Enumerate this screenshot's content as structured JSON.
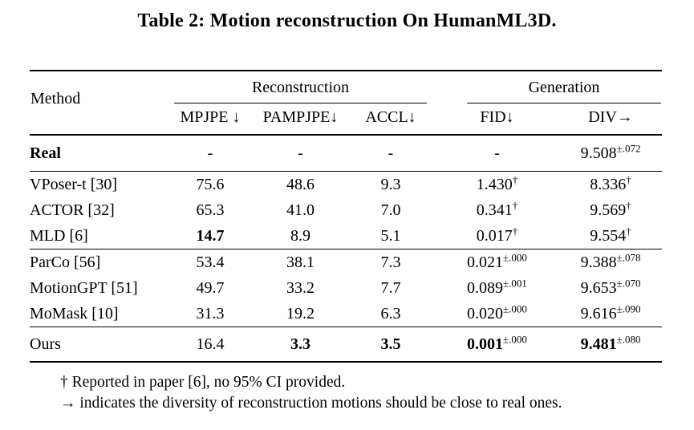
{
  "title": "Table 2: Motion reconstruction On HumanML3D.",
  "table": {
    "method_header": "Method",
    "groups": [
      {
        "label": "Reconstruction"
      },
      {
        "label": "Generation"
      }
    ],
    "columns": [
      "MPJPE ↓",
      "PAMPJPE↓",
      "ACCL↓",
      "FID↓",
      "DIV→"
    ],
    "rows": [
      {
        "method": "Real",
        "cells": [
          {
            "v": "-"
          },
          {
            "v": "-"
          },
          {
            "v": "-"
          },
          {
            "v": "-"
          },
          {
            "v": "9.508",
            "sup": "±.072"
          }
        ]
      },
      {
        "method": "VPoser-t [30]",
        "cells": [
          {
            "v": "75.6"
          },
          {
            "v": "48.6"
          },
          {
            "v": "9.3"
          },
          {
            "v": "1.430",
            "sup": "†"
          },
          {
            "v": "8.336",
            "sup": "†"
          }
        ]
      },
      {
        "method": "ACTOR [32]",
        "cells": [
          {
            "v": "65.3"
          },
          {
            "v": "41.0"
          },
          {
            "v": "7.0"
          },
          {
            "v": "0.341",
            "sup": "†"
          },
          {
            "v": "9.569",
            "sup": "†"
          }
        ]
      },
      {
        "method": "MLD [6]",
        "cells": [
          {
            "v": "14.7"
          },
          {
            "v": "8.9"
          },
          {
            "v": "5.1"
          },
          {
            "v": "0.017",
            "sup": "†"
          },
          {
            "v": "9.554",
            "sup": "†"
          }
        ]
      },
      {
        "method": "ParCo [56]",
        "cells": [
          {
            "v": "53.4"
          },
          {
            "v": "38.1"
          },
          {
            "v": "7.3"
          },
          {
            "v": "0.021",
            "sup": "±.000"
          },
          {
            "v": "9.388",
            "sup": "±.078"
          }
        ]
      },
      {
        "method": "MotionGPT [51]",
        "cells": [
          {
            "v": "49.7"
          },
          {
            "v": "33.2"
          },
          {
            "v": "7.7"
          },
          {
            "v": "0.089",
            "sup": "±.001"
          },
          {
            "v": "9.653",
            "sup": "±.070"
          }
        ]
      },
      {
        "method": "MoMask [10]",
        "cells": [
          {
            "v": "31.3"
          },
          {
            "v": "19.2"
          },
          {
            "v": "6.3"
          },
          {
            "v": "0.020",
            "sup": "±.000"
          },
          {
            "v": "9.616",
            "sup": "±.090"
          }
        ]
      },
      {
        "method": "Ours",
        "cells": [
          {
            "v": "16.4"
          },
          {
            "v": "3.3"
          },
          {
            "v": "3.5"
          },
          {
            "v": "0.001",
            "sup": "±.000"
          },
          {
            "v": "9.481",
            "sup": "±.080"
          }
        ]
      }
    ]
  },
  "footnotes": [
    "† Reported in paper [6], no 95% CI provided.",
    "→ indicates the diversity of reconstruction motions should be close to real ones."
  ],
  "colors": {
    "text": "#000000",
    "background": "#ffffff",
    "rule": "#000000"
  }
}
